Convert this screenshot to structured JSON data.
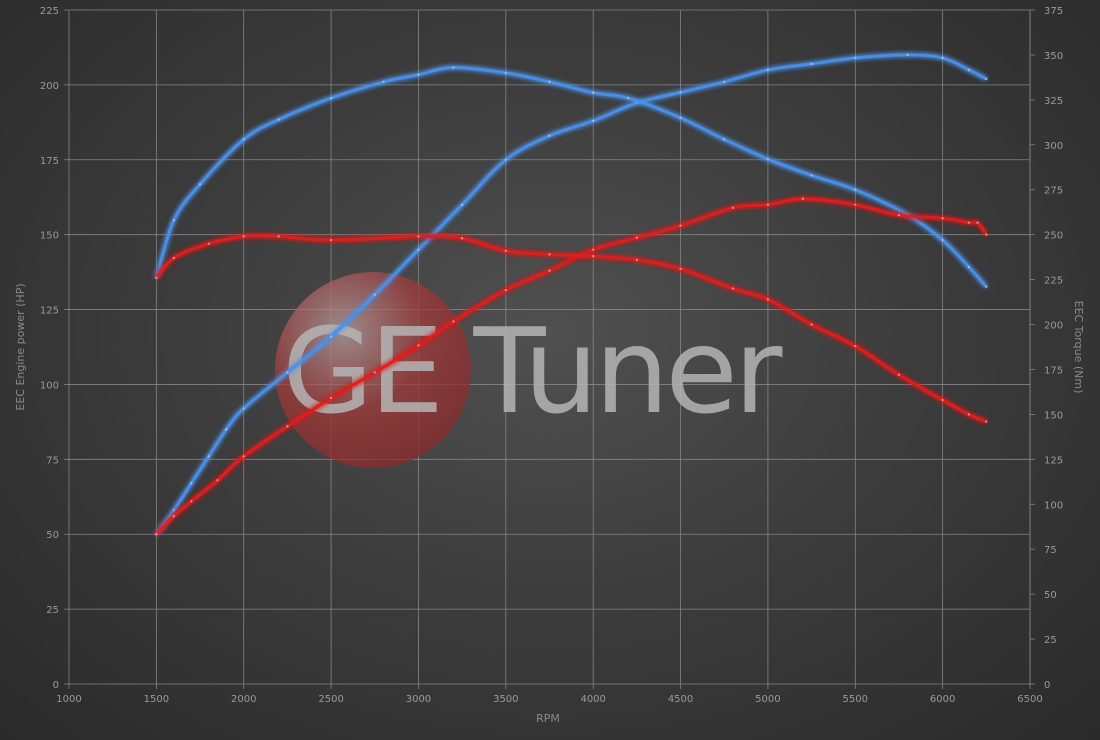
{
  "chart_data": {
    "type": "line",
    "title": "",
    "xlabel": "RPM",
    "ylabel_left": "EEC Engine power (HP)",
    "ylabel_right": "EEC Torque (Nm)",
    "xlim": [
      1000,
      6500
    ],
    "ylim_left": [
      0,
      225
    ],
    "ylim_right": [
      0,
      375
    ],
    "x_ticks": [
      1000,
      1500,
      2000,
      2500,
      3000,
      3500,
      4000,
      4500,
      5000,
      5500,
      6000,
      6500
    ],
    "y_ticks_left": [
      0,
      25,
      50,
      75,
      100,
      125,
      150,
      175,
      200,
      225
    ],
    "y_ticks_right": [
      0,
      25,
      50,
      75,
      100,
      125,
      150,
      175,
      200,
      225,
      250,
      275,
      300,
      325,
      350,
      375
    ],
    "grid": true,
    "watermark": "GE Tuner",
    "series": [
      {
        "axis": "left",
        "color": "#4a90e8",
        "x": [
          1500,
          1600,
          1700,
          1800,
          1900,
          2000,
          2250,
          2500,
          2750,
          3000,
          3250,
          3500,
          3750,
          4000,
          4250,
          4500,
          4750,
          5000,
          5250,
          5500,
          5800,
          6000,
          6150,
          6250
        ],
        "y": [
          50,
          58,
          67,
          76,
          85,
          92,
          104,
          116,
          130,
          145,
          160,
          175,
          183,
          188,
          194,
          197.5,
          201,
          205,
          207,
          209,
          210,
          209,
          205,
          202
        ]
      },
      {
        "axis": "right",
        "color": "#4a90e8",
        "x": [
          1500,
          1600,
          1750,
          2000,
          2200,
          2500,
          2800,
          3000,
          3200,
          3500,
          3750,
          4000,
          4200,
          4500,
          4750,
          5000,
          5250,
          5500,
          5800,
          6000,
          6150,
          6250
        ],
        "y": [
          226,
          258,
          278,
          303,
          314,
          326,
          335,
          339,
          343,
          340,
          335,
          329,
          326,
          315,
          303,
          292,
          283,
          275,
          261,
          247,
          232,
          221
        ]
      },
      {
        "axis": "left",
        "color": "#e02020",
        "x": [
          1500,
          1600,
          1700,
          1850,
          2000,
          2250,
          2500,
          2750,
          3000,
          3200,
          3500,
          3750,
          4000,
          4250,
          4500,
          4800,
          5000,
          5200,
          5500,
          5750,
          6000,
          6150,
          6200,
          6250
        ],
        "y": [
          50,
          56,
          61,
          68,
          76,
          86,
          95.5,
          104,
          113,
          121,
          131.5,
          138,
          145,
          149,
          153,
          159,
          160,
          162,
          160,
          156.5,
          155.5,
          154,
          154,
          150
        ]
      },
      {
        "axis": "right",
        "color": "#e02020",
        "x": [
          1500,
          1600,
          1800,
          2000,
          2200,
          2500,
          3000,
          3250,
          3500,
          3750,
          4000,
          4250,
          4500,
          4800,
          5000,
          5250,
          5500,
          5750,
          6000,
          6150,
          6250
        ],
        "y": [
          226,
          237,
          245,
          249,
          249,
          247,
          249,
          248,
          241,
          239,
          238,
          236,
          231,
          220,
          214,
          200,
          188,
          172,
          158,
          150,
          146
        ]
      }
    ]
  }
}
